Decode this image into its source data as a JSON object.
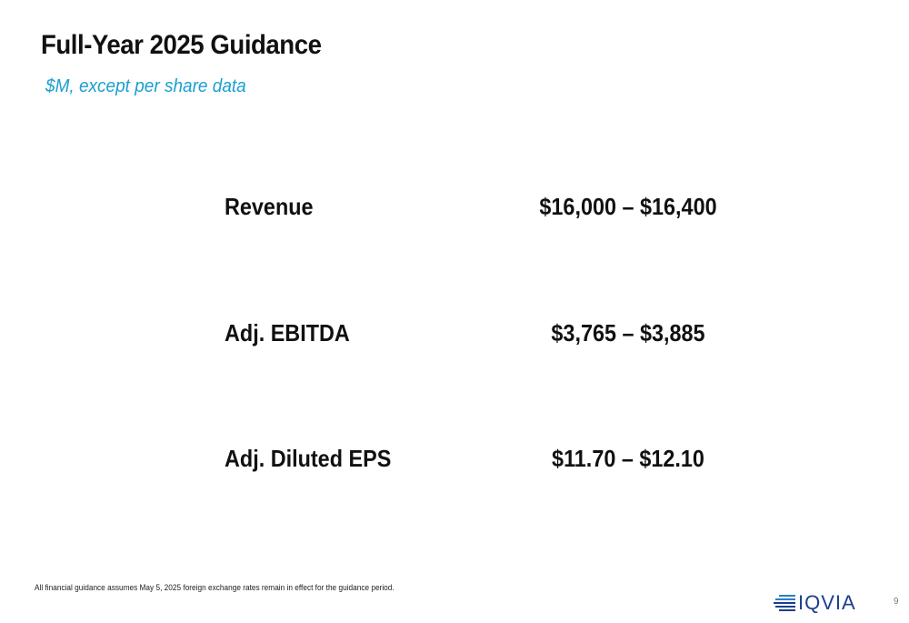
{
  "slide": {
    "title": "Full-Year 2025 Guidance",
    "subtitle": "$M, except per share data",
    "rows": [
      {
        "label": "Revenue",
        "value": "$16,000 – $16,400"
      },
      {
        "label": "Adj. EBITDA",
        "value": "$3,765 – $3,885"
      },
      {
        "label": "Adj. Diluted EPS",
        "value": "$11.70 – $12.10"
      }
    ],
    "footnote": "All financial guidance assumes May 5, 2025 foreign exchange rates remain in effect for the guidance period.",
    "logo_text": "IQVIA",
    "page_number": "9"
  },
  "colors": {
    "text": "#111111",
    "subtitle": "#1a9fd0",
    "logo": "#1c3f8c",
    "page_number": "#7a7a7a"
  },
  "icons": {
    "logo": "iqvia-logo-icon"
  }
}
